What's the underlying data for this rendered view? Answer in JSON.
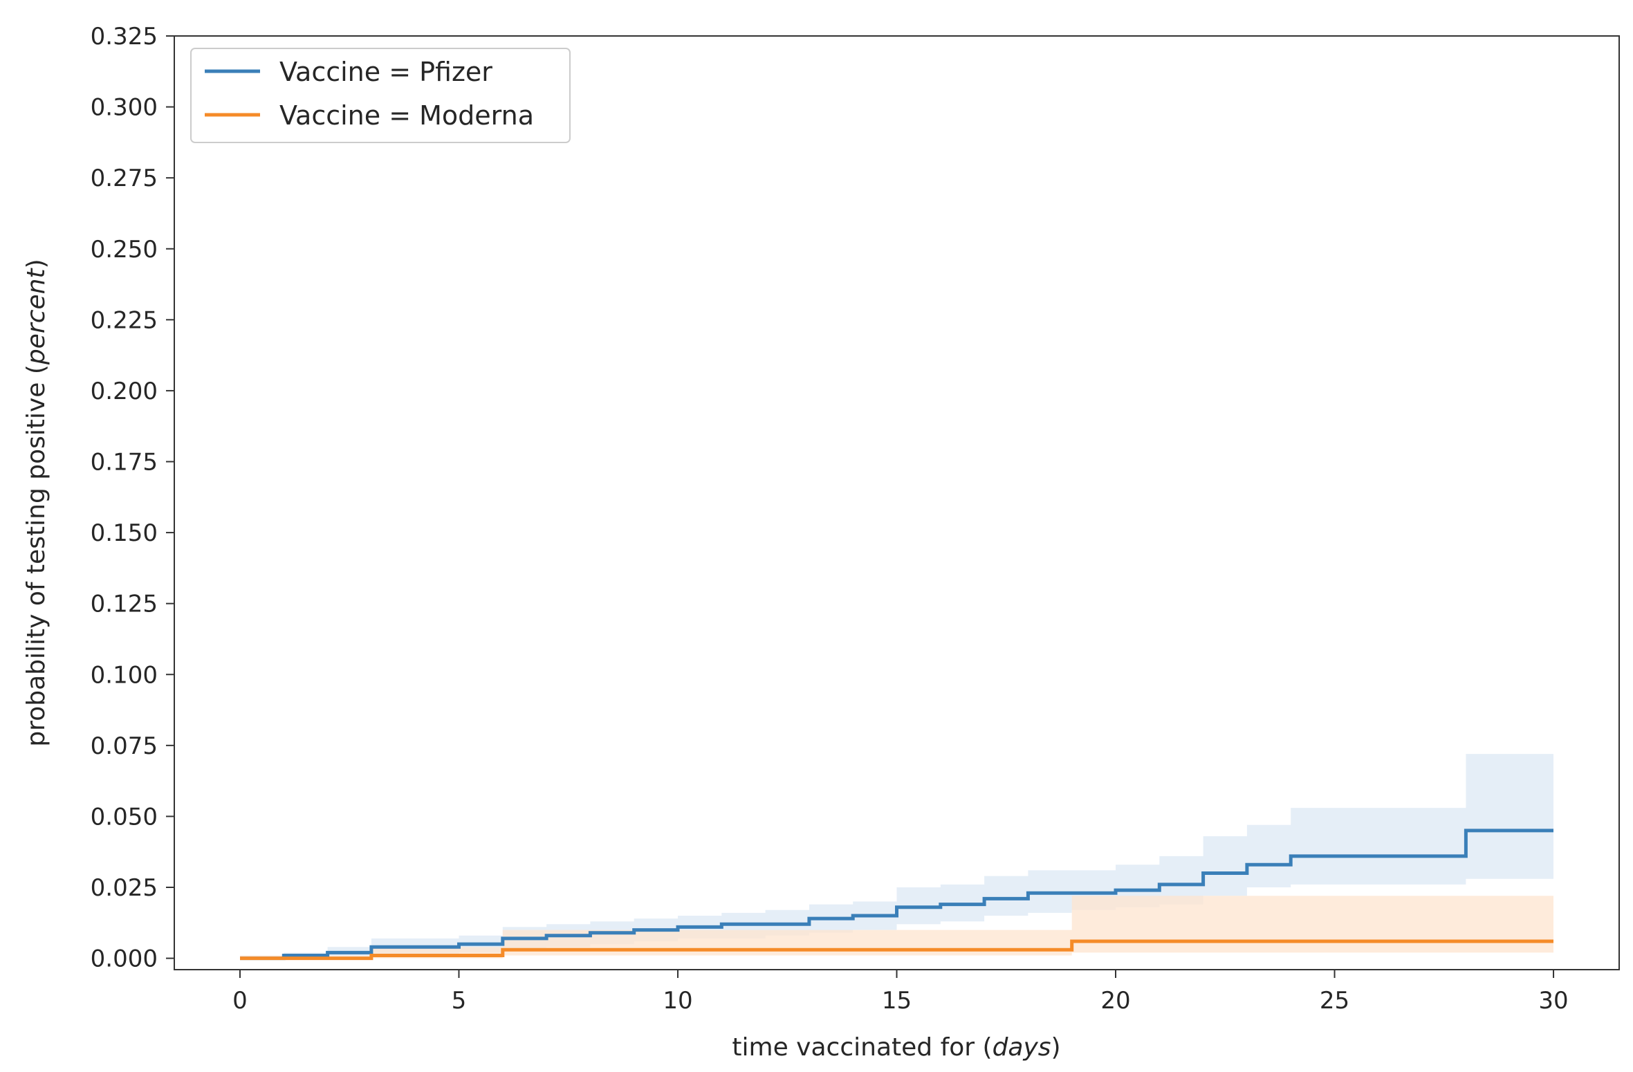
{
  "chart_data": {
    "type": "line",
    "xlabel": "time vaccinated for (",
    "xlabel_italic": "days",
    "xlabel_close": ")",
    "ylabel": "probability of testing positive (",
    "ylabel_italic": "percent",
    "ylabel_close": ")",
    "xlim": [
      -1.5,
      31.5
    ],
    "ylim": [
      -0.004,
      0.325
    ],
    "x_ticks": [
      0,
      5,
      10,
      15,
      20,
      25,
      30
    ],
    "x_tick_labels": [
      "0",
      "5",
      "10",
      "15",
      "20",
      "25",
      "30"
    ],
    "y_ticks": [
      0,
      0.025,
      0.05,
      0.075,
      0.1,
      0.125,
      0.15,
      0.175,
      0.2,
      0.225,
      0.25,
      0.275,
      0.3,
      0.325
    ],
    "y_tick_labels": [
      "0.000",
      "0.025",
      "0.050",
      "0.075",
      "0.100",
      "0.125",
      "0.150",
      "0.175",
      "0.200",
      "0.225",
      "0.250",
      "0.275",
      "0.300",
      "0.325"
    ],
    "grid": false,
    "legend_placement": "top-left",
    "step": "post",
    "series": [
      {
        "name": "Vaccine = Pfizer",
        "color": "#3a7fb8",
        "band_color": "#dce8f4",
        "x": [
          0,
          1,
          2,
          3,
          4,
          5,
          6,
          7,
          8,
          9,
          10,
          11,
          12,
          13,
          14,
          15,
          16,
          17,
          18,
          19,
          20,
          21,
          22,
          23,
          24,
          25,
          26,
          27,
          28,
          30
        ],
        "y": [
          0,
          0.001,
          0.002,
          0.004,
          0.004,
          0.005,
          0.007,
          0.008,
          0.009,
          0.01,
          0.011,
          0.012,
          0.012,
          0.014,
          0.015,
          0.018,
          0.019,
          0.021,
          0.023,
          0.023,
          0.024,
          0.026,
          0.03,
          0.033,
          0.036,
          0.036,
          0.036,
          0.036,
          0.045,
          0.045
        ],
        "lower": [
          0,
          0,
          0,
          0.001,
          0.001,
          0.002,
          0.003,
          0.004,
          0.005,
          0.006,
          0.007,
          0.007,
          0.008,
          0.009,
          0.01,
          0.012,
          0.013,
          0.015,
          0.016,
          0.017,
          0.018,
          0.019,
          0.022,
          0.025,
          0.026,
          0.026,
          0.026,
          0.026,
          0.028,
          0.028
        ],
        "upper": [
          0.001,
          0.002,
          0.004,
          0.007,
          0.007,
          0.008,
          0.011,
          0.012,
          0.013,
          0.014,
          0.015,
          0.016,
          0.017,
          0.019,
          0.02,
          0.025,
          0.026,
          0.029,
          0.031,
          0.031,
          0.033,
          0.036,
          0.043,
          0.047,
          0.053,
          0.053,
          0.053,
          0.053,
          0.072,
          0.072
        ]
      },
      {
        "name": "Vaccine = Moderna",
        "color": "#f58b28",
        "band_color": "#fde4cf",
        "x": [
          0,
          3,
          6,
          19,
          30
        ],
        "y": [
          0,
          0.001,
          0.003,
          0.006,
          0.006
        ],
        "lower": [
          0,
          0,
          0.001,
          0.002,
          0.002
        ],
        "upper": [
          0.001,
          0.004,
          0.01,
          0.022,
          0.022
        ]
      }
    ]
  }
}
